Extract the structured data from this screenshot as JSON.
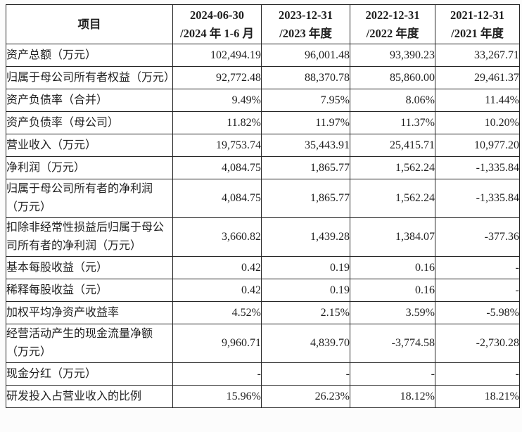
{
  "page": {
    "background": "#fcfcfc",
    "text_color": "#1f1f1f",
    "border_color": "#262626"
  },
  "table": {
    "header": {
      "item_label": "项目",
      "periods": [
        {
          "line1": "2024-06-30",
          "line2": "/2024 年 1-6 月"
        },
        {
          "line1": "2023-12-31",
          "line2": "/2023 年度"
        },
        {
          "line1": "2022-12-31",
          "line2": "/2022 年度"
        },
        {
          "line1": "2021-12-31",
          "line2": "/2021 年度"
        }
      ]
    },
    "rows": [
      {
        "label": "资产总额（万元）",
        "values": [
          "102,494.19",
          "96,001.48",
          "93,390.23",
          "33,267.71"
        ]
      },
      {
        "label": "归属于母公司所有者权益（万元）",
        "values": [
          "92,772.48",
          "88,370.78",
          "85,860.00",
          "29,461.37"
        ]
      },
      {
        "label": "资产负债率（合并）",
        "values": [
          "9.49%",
          "7.95%",
          "8.06%",
          "11.44%"
        ]
      },
      {
        "label": "资产负债率（母公司）",
        "values": [
          "11.82%",
          "11.97%",
          "11.37%",
          "10.20%"
        ]
      },
      {
        "label": "营业收入（万元）",
        "values": [
          "19,753.74",
          "35,443.91",
          "25,415.71",
          "10,977.20"
        ]
      },
      {
        "label": "净利润（万元）",
        "values": [
          "4,084.75",
          "1,865.77",
          "1,562.24",
          "-1,335.84"
        ]
      },
      {
        "label": "归属于母公司所有者的净利润（万元）",
        "values": [
          "4,084.75",
          "1,865.77",
          "1,562.24",
          "-1,335.84"
        ]
      },
      {
        "label": "扣除非经常性损益后归属于母公司所有者的净利润（万元）",
        "values": [
          "3,660.82",
          "1,439.28",
          "1,384.07",
          "-377.36"
        ]
      },
      {
        "label": "基本每股收益（元）",
        "values": [
          "0.42",
          "0.19",
          "0.16",
          "-"
        ]
      },
      {
        "label": "稀释每股收益（元）",
        "values": [
          "0.42",
          "0.19",
          "0.16",
          "-"
        ]
      },
      {
        "label": "加权平均净资产收益率",
        "values": [
          "4.52%",
          "2.15%",
          "3.59%",
          "-5.98%"
        ]
      },
      {
        "label": "经营活动产生的现金流量净额（万元）",
        "values": [
          "9,960.71",
          "4,839.70",
          "-3,774.58",
          "-2,730.28"
        ]
      },
      {
        "label": "现金分红（万元）",
        "values": [
          "-",
          "-",
          "-",
          "-"
        ]
      },
      {
        "label": "研发投入占营业收入的比例",
        "values": [
          "15.96%",
          "26.23%",
          "18.12%",
          "18.21%"
        ]
      }
    ]
  }
}
